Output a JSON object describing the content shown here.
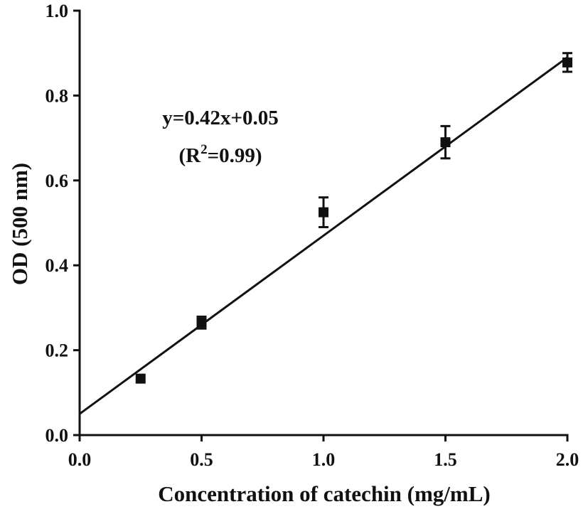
{
  "chart_data": {
    "type": "scatter",
    "xlabel": "Concentration of catechin (mg/mL)",
    "ylabel": "OD (500 nm)",
    "xlim": [
      0.0,
      2.0
    ],
    "ylim": [
      0.0,
      1.0
    ],
    "x_ticks": [
      "0.0",
      "0.5",
      "1.0",
      "1.5",
      "2.0"
    ],
    "y_ticks": [
      "0.0",
      "0.2",
      "0.4",
      "0.6",
      "0.8",
      "1.0"
    ],
    "grid": false,
    "series": [
      {
        "x": [
          0.25,
          0.5,
          1.0,
          1.5,
          2.0
        ],
        "y": [
          0.133,
          0.265,
          0.525,
          0.69,
          0.878
        ],
        "error": [
          0.0,
          0.014,
          0.035,
          0.038,
          0.022
        ],
        "marker": "square",
        "color": "#111111"
      }
    ],
    "fit_line": {
      "slope": 0.42,
      "intercept": 0.05,
      "color": "#111111"
    },
    "annotation": {
      "equation": "y=0.42x+0.05",
      "r2_open": "(R",
      "r2_sup": "2",
      "r2_close": "=0.99)"
    }
  }
}
